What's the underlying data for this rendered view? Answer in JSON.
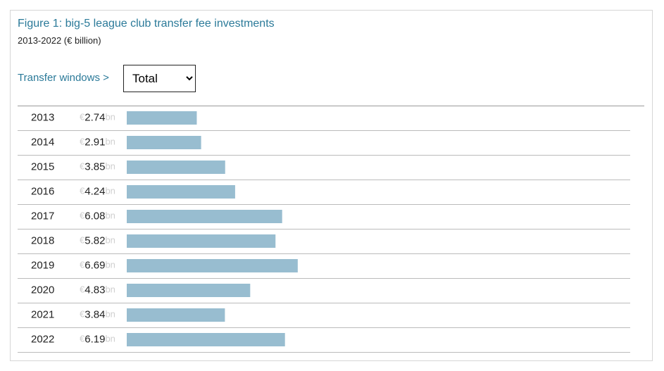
{
  "chart_data": {
    "type": "bar",
    "orientation": "horizontal",
    "title": "Figure 1: big-5 league club transfer fee investments",
    "subtitle": "2013-2022 (€ billion)",
    "categories": [
      "2013",
      "2014",
      "2015",
      "2016",
      "2017",
      "2018",
      "2019",
      "2020",
      "2021",
      "2022"
    ],
    "values": [
      2.74,
      2.91,
      3.85,
      4.24,
      6.08,
      5.82,
      6.69,
      4.83,
      3.84,
      6.19
    ],
    "value_prefix": "€",
    "value_suffix": "bn",
    "color": "#98bdd0"
  },
  "controls": {
    "label": "Transfer windows >",
    "selected": "Total"
  }
}
